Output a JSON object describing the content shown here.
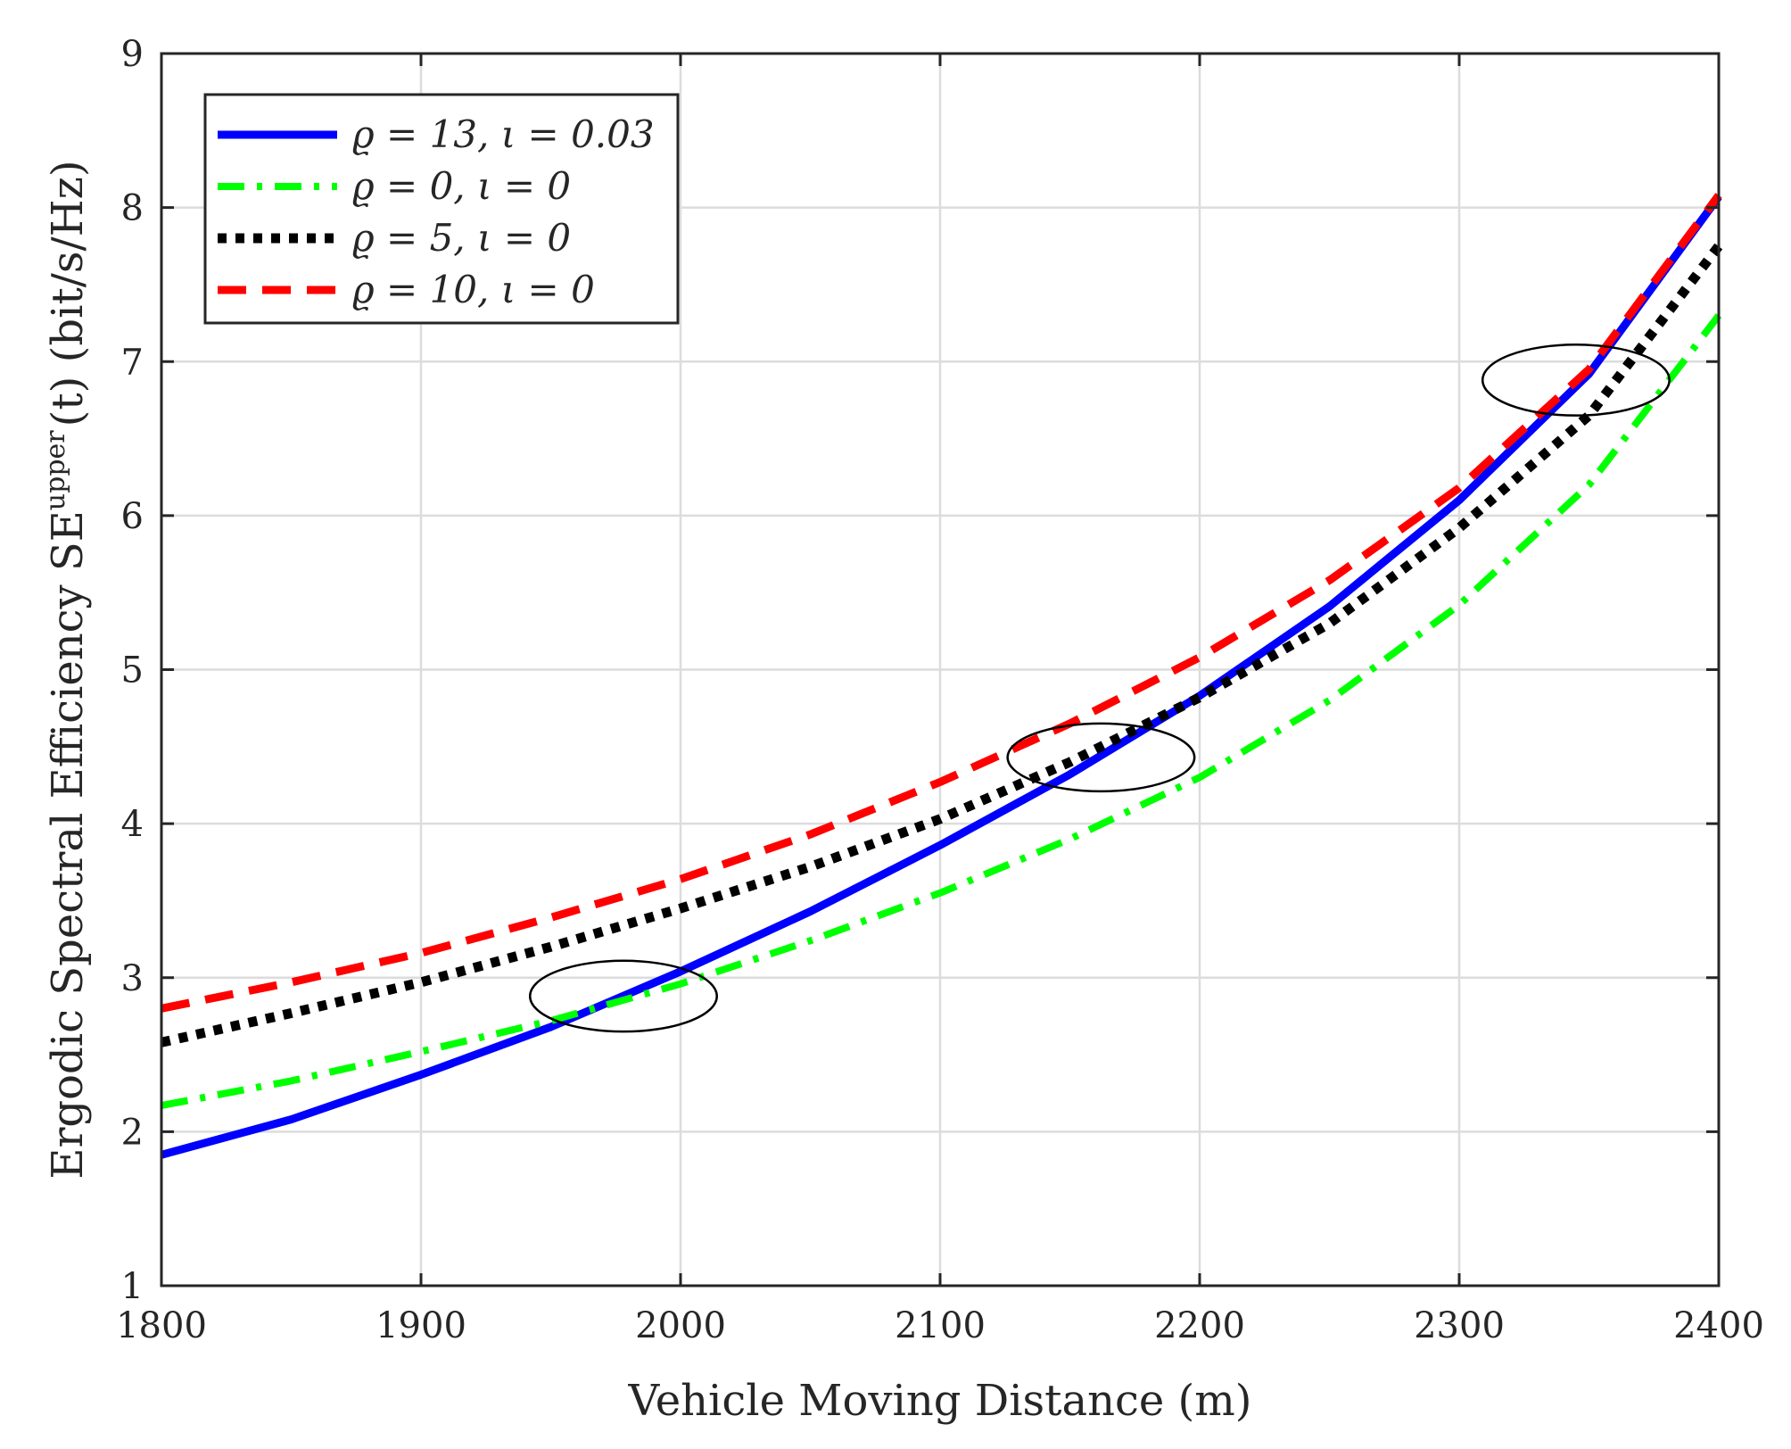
{
  "chart_data": {
    "type": "line",
    "title": "",
    "xlabel": "Vehicle Moving Distance (m)",
    "ylabel": "Ergodic Spectral Efficiency SE",
    "ylabel_superscript": "upper",
    "ylabel_suffix": "(t) (bit/s/Hz)",
    "xlim": [
      1800,
      2400
    ],
    "ylim": [
      1,
      9
    ],
    "xticks": [
      "1800",
      "1900",
      "2000",
      "2100",
      "2200",
      "2300",
      "2400"
    ],
    "yticks": [
      "1",
      "2",
      "3",
      "4",
      "5",
      "6",
      "7",
      "8",
      "9"
    ],
    "grid": true,
    "legend_position": "top-left",
    "x": [
      1800,
      1850,
      1900,
      1950,
      2000,
      2050,
      2100,
      2150,
      2200,
      2250,
      2300,
      2350,
      2400
    ],
    "series": [
      {
        "name": "ϱ = 13, ι = 0.03",
        "color": "#0000ff",
        "style": "solid",
        "values": [
          1.85,
          2.08,
          2.37,
          2.68,
          3.04,
          3.43,
          3.86,
          4.32,
          4.83,
          5.41,
          6.1,
          6.92,
          8.07
        ]
      },
      {
        "name": "ϱ = 0, ι = 0",
        "color": "#00ff00",
        "style": "dashdot",
        "values": [
          2.17,
          2.33,
          2.52,
          2.72,
          2.96,
          3.24,
          3.55,
          3.9,
          4.3,
          4.8,
          5.42,
          6.2,
          7.3
        ]
      },
      {
        "name": "ϱ = 5, ι = 0",
        "color": "#000000",
        "style": "dotted",
        "values": [
          2.58,
          2.77,
          2.97,
          3.2,
          3.45,
          3.72,
          4.03,
          4.4,
          4.82,
          5.3,
          5.92,
          6.65,
          7.75
        ]
      },
      {
        "name": "ϱ = 10, ι = 0",
        "color": "#ff0000",
        "style": "dashed",
        "values": [
          2.8,
          2.97,
          3.16,
          3.39,
          3.64,
          3.93,
          4.27,
          4.65,
          5.08,
          5.58,
          6.18,
          6.95,
          8.08
        ]
      }
    ],
    "annotations": [
      {
        "type": "ellipse",
        "center": [
          1978,
          2.88
        ],
        "rx_data": 36,
        "ry_data": 0.23
      },
      {
        "type": "ellipse",
        "center": [
          2162,
          4.43
        ],
        "rx_data": 36,
        "ry_data": 0.22
      },
      {
        "type": "ellipse",
        "center": [
          2345,
          6.88
        ],
        "rx_data": 36,
        "ry_data": 0.23
      }
    ]
  }
}
